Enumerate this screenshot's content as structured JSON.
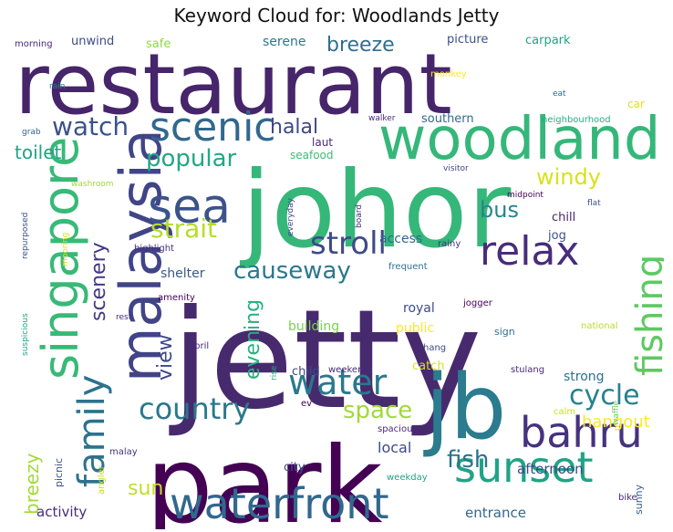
{
  "title": "Keyword Cloud for: Woodlands Jetty",
  "chart_data": {
    "type": "wordcloud",
    "title": "Keyword Cloud for: Woodlands Jetty",
    "words": [
      {
        "text": "restaurant",
        "weight": 95,
        "color": "#46256b"
      },
      {
        "text": "jetty",
        "weight": 100,
        "color": "#472a6e"
      },
      {
        "text": "johor",
        "weight": 88,
        "color": "#35b779"
      },
      {
        "text": "park",
        "weight": 88,
        "color": "#440154"
      },
      {
        "text": "jb",
        "weight": 80,
        "color": "#2a7c8e"
      },
      {
        "text": "woodland",
        "weight": 62,
        "color": "#35b779"
      },
      {
        "text": "malaysia",
        "weight": 60,
        "color": "#414487"
      },
      {
        "text": "singapore",
        "weight": 52,
        "color": "#38b977"
      },
      {
        "text": "waterfront",
        "weight": 50,
        "color": "#31688e"
      },
      {
        "text": "sunset",
        "weight": 48,
        "color": "#20a386"
      },
      {
        "text": "bahru",
        "weight": 46,
        "color": "#46327e"
      },
      {
        "text": "sea",
        "weight": 46,
        "color": "#3b528b"
      },
      {
        "text": "scenic",
        "weight": 42,
        "color": "#31688e"
      },
      {
        "text": "relax",
        "weight": 40,
        "color": "#472d7b"
      },
      {
        "text": "fishing",
        "weight": 40,
        "color": "#5ec962"
      },
      {
        "text": "family",
        "weight": 38,
        "color": "#2c728e"
      },
      {
        "text": "water",
        "weight": 38,
        "color": "#2a788e"
      },
      {
        "text": "country",
        "weight": 32,
        "color": "#2a788e"
      },
      {
        "text": "stroll",
        "weight": 32,
        "color": "#3e4a89"
      },
      {
        "text": "cycle",
        "weight": 30,
        "color": "#26828e"
      },
      {
        "text": "strait",
        "weight": 28,
        "color": "#b5de2b"
      },
      {
        "text": "watch",
        "weight": 28,
        "color": "#3b528b"
      },
      {
        "text": "causeway",
        "weight": 26,
        "color": "#2a788e"
      },
      {
        "text": "fish",
        "weight": 26,
        "color": "#2c728e"
      },
      {
        "text": "space",
        "weight": 26,
        "color": "#a0da39"
      },
      {
        "text": "popular",
        "weight": 26,
        "color": "#22a884"
      },
      {
        "text": "bus",
        "weight": 24,
        "color": "#25858e"
      },
      {
        "text": "windy",
        "weight": 24,
        "color": "#d8e219"
      },
      {
        "text": "breeze",
        "weight": 22,
        "color": "#2d708e"
      },
      {
        "text": "scenery",
        "weight": 22,
        "color": "#443983"
      },
      {
        "text": "halal",
        "weight": 22,
        "color": "#3f4788"
      },
      {
        "text": "evening",
        "weight": 22,
        "color": "#29af7f"
      },
      {
        "text": "view",
        "weight": 22,
        "color": "#3e4989"
      },
      {
        "text": "sun",
        "weight": 22,
        "color": "#c2df23"
      },
      {
        "text": "breezy",
        "weight": 20,
        "color": "#a2da37"
      },
      {
        "text": "toilet",
        "weight": 20,
        "color": "#20a386"
      },
      {
        "text": "hangout",
        "weight": 18,
        "color": "#fde725"
      },
      {
        "text": "local",
        "weight": 16,
        "color": "#3e4989"
      },
      {
        "text": "activity",
        "weight": 15,
        "color": "#472d7b"
      },
      {
        "text": "entrance",
        "weight": 15,
        "color": "#31688e"
      },
      {
        "text": "afternoon",
        "weight": 15,
        "color": "#414487"
      },
      {
        "text": "strong",
        "weight": 14,
        "color": "#2c728e"
      },
      {
        "text": "shelter",
        "weight": 14,
        "color": "#38598c"
      },
      {
        "text": "building",
        "weight": 14,
        "color": "#7ad151"
      },
      {
        "text": "public",
        "weight": 14,
        "color": "#fde725"
      },
      {
        "text": "royal",
        "weight": 14,
        "color": "#3e4a89"
      },
      {
        "text": "access",
        "weight": 14,
        "color": "#31688e"
      },
      {
        "text": "chill",
        "weight": 13,
        "color": "#481f70"
      },
      {
        "text": "jog",
        "weight": 13,
        "color": "#3b528b"
      },
      {
        "text": "catch",
        "weight": 13,
        "color": "#d8e219"
      },
      {
        "text": "child",
        "weight": 13,
        "color": "#3e4989"
      },
      {
        "text": "city",
        "weight": 13,
        "color": "#3b528b"
      },
      {
        "text": "serene",
        "weight": 14,
        "color": "#2a788e"
      },
      {
        "text": "picture",
        "weight": 13,
        "color": "#3b528b"
      },
      {
        "text": "carpark",
        "weight": 13,
        "color": "#20a386"
      },
      {
        "text": "unwind",
        "weight": 13,
        "color": "#3e4a89"
      },
      {
        "text": "safe",
        "weight": 13,
        "color": "#8fd744"
      },
      {
        "text": "southern",
        "weight": 13,
        "color": "#31688e"
      },
      {
        "text": "seafood",
        "weight": 12,
        "color": "#3fbc73"
      },
      {
        "text": "laut",
        "weight": 12,
        "color": "#482878"
      },
      {
        "text": "car",
        "weight": 12,
        "color": "#dde318"
      },
      {
        "text": "sunny",
        "weight": 11,
        "color": "#355f8d"
      },
      {
        "text": "morning",
        "weight": 10,
        "color": "#482878"
      },
      {
        "text": "monkey",
        "weight": 10,
        "color": "#fde725"
      },
      {
        "text": "rain",
        "weight": 9,
        "color": "#26828e"
      },
      {
        "text": "eat",
        "weight": 9,
        "color": "#31688e"
      },
      {
        "text": "grab",
        "weight": 9,
        "color": "#33638d"
      },
      {
        "text": "walker",
        "weight": 9,
        "color": "#482878"
      },
      {
        "text": "neighbourhood",
        "weight": 10,
        "color": "#27ad81"
      },
      {
        "text": "washroom",
        "weight": 9,
        "color": "#9fda3a"
      },
      {
        "text": "visitor",
        "weight": 9,
        "color": "#3e4989"
      },
      {
        "text": "midpoint",
        "weight": 9,
        "color": "#440154"
      },
      {
        "text": "flat",
        "weight": 9,
        "color": "#3b528b"
      },
      {
        "text": "everyday",
        "weight": 9,
        "color": "#3e4989"
      },
      {
        "text": "board",
        "weight": 9,
        "color": "#46327e"
      },
      {
        "text": "repurposed",
        "weight": 9,
        "color": "#3b528b"
      },
      {
        "text": "mooring",
        "weight": 9,
        "color": "#dde318"
      },
      {
        "text": "highlight",
        "weight": 10,
        "color": "#472d7b"
      },
      {
        "text": "rainy",
        "weight": 10,
        "color": "#46327e"
      },
      {
        "text": "frequent",
        "weight": 10,
        "color": "#2c728e"
      },
      {
        "text": "amenity",
        "weight": 10,
        "color": "#440154"
      },
      {
        "text": "jogger",
        "weight": 10,
        "color": "#440154"
      },
      {
        "text": "suspicious",
        "weight": 9,
        "color": "#20a386"
      },
      {
        "text": "rest",
        "weight": 9,
        "color": "#482878"
      },
      {
        "text": "april",
        "weight": 10,
        "color": "#482878"
      },
      {
        "text": "rise",
        "weight": 9,
        "color": "#22a884"
      },
      {
        "text": "hang",
        "weight": 10,
        "color": "#3e4a89"
      },
      {
        "text": "sign",
        "weight": 11,
        "color": "#2c728e"
      },
      {
        "text": "national",
        "weight": 10,
        "color": "#b5de2b"
      },
      {
        "text": "weekend",
        "weight": 10,
        "color": "#482878"
      },
      {
        "text": "ev",
        "weight": 10,
        "color": "#440154"
      },
      {
        "text": "stulang",
        "weight": 10,
        "color": "#482878"
      },
      {
        "text": "waffle",
        "weight": 9,
        "color": "#6ece58"
      },
      {
        "text": "calm",
        "weight": 10,
        "color": "#c2df23"
      },
      {
        "text": "spacious",
        "weight": 10,
        "color": "#482878"
      },
      {
        "text": "picnic",
        "weight": 11,
        "color": "#3b528b"
      },
      {
        "text": "malay",
        "weight": 10,
        "color": "#46327e"
      },
      {
        "text": "angler",
        "weight": 10,
        "color": "#c8e020"
      },
      {
        "text": "weekday",
        "weight": 10,
        "color": "#20a386"
      },
      {
        "text": "bike",
        "weight": 10,
        "color": "#482878"
      }
    ]
  }
}
